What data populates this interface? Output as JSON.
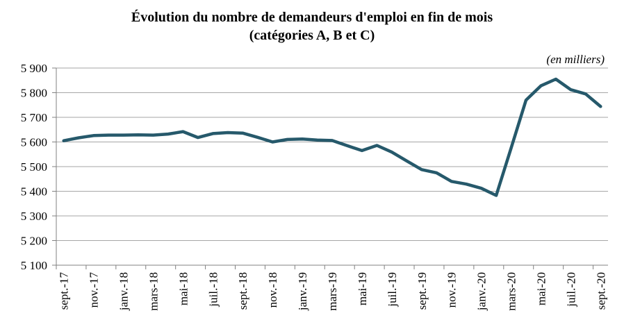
{
  "chart_data": {
    "type": "line",
    "title_line1": "Évolution du nombre de demandeurs d'emploi en fin de mois",
    "title_line2": "(catégories A, B et C)",
    "unit_note": "(en milliers)",
    "months": [
      "sept.-17",
      "oct.-17",
      "nov.-17",
      "déc.-17",
      "janv.-18",
      "févr.-18",
      "mars-18",
      "avr.-18",
      "mai-18",
      "juin-18",
      "juil.-18",
      "août-18",
      "sept.-18",
      "oct.-18",
      "nov.-18",
      "déc.-18",
      "janv.-19",
      "févr.-19",
      "mars-19",
      "avr.-19",
      "mai-19",
      "juin-19",
      "juil.-19",
      "août-19",
      "sept.-19",
      "oct.-19",
      "nov.-19",
      "déc.-19",
      "janv.-20",
      "févr.-20",
      "mars-20",
      "avr.-20",
      "mai-20",
      "juin-20",
      "juil.-20",
      "août-20",
      "sept.-20"
    ],
    "values": [
      5605,
      5617,
      5626,
      5628,
      5628,
      5629,
      5628,
      5632,
      5642,
      5618,
      5634,
      5638,
      5636,
      5619,
      5600,
      5610,
      5612,
      5608,
      5606,
      5585,
      5565,
      5586,
      5559,
      5523,
      5488,
      5475,
      5440,
      5429,
      5412,
      5383,
      5575,
      5770,
      5828,
      5855,
      5812,
      5795,
      5744
    ],
    "x_tick_labels": [
      "sept.-17",
      "nov.-17",
      "janv.-18",
      "mars-18",
      "mai-18",
      "juil.-18",
      "sept.-18",
      "nov.-18",
      "janv.-19",
      "mars-19",
      "mai-19",
      "juil.-19",
      "sept.-19",
      "nov.-19",
      "janv.-20",
      "mars-20",
      "mai-20",
      "juil.-20",
      "sept.-20"
    ],
    "x_label_interval": 2,
    "y_tick_labels": [
      "5 900",
      "5 800",
      "5 700",
      "5 600",
      "5 500",
      "5 400",
      "5 300",
      "5 200",
      "5 100"
    ],
    "ylim": [
      5100,
      5900
    ],
    "ytick_step": 100,
    "xlabel": "",
    "ylabel": "",
    "grid": "horizontal",
    "legend": "none",
    "line_color": "#26596B",
    "gridline_color": "#A6A6A6",
    "axis_color": "#808080",
    "text_color": "#000000",
    "background_color": "#FFFFFF"
  }
}
